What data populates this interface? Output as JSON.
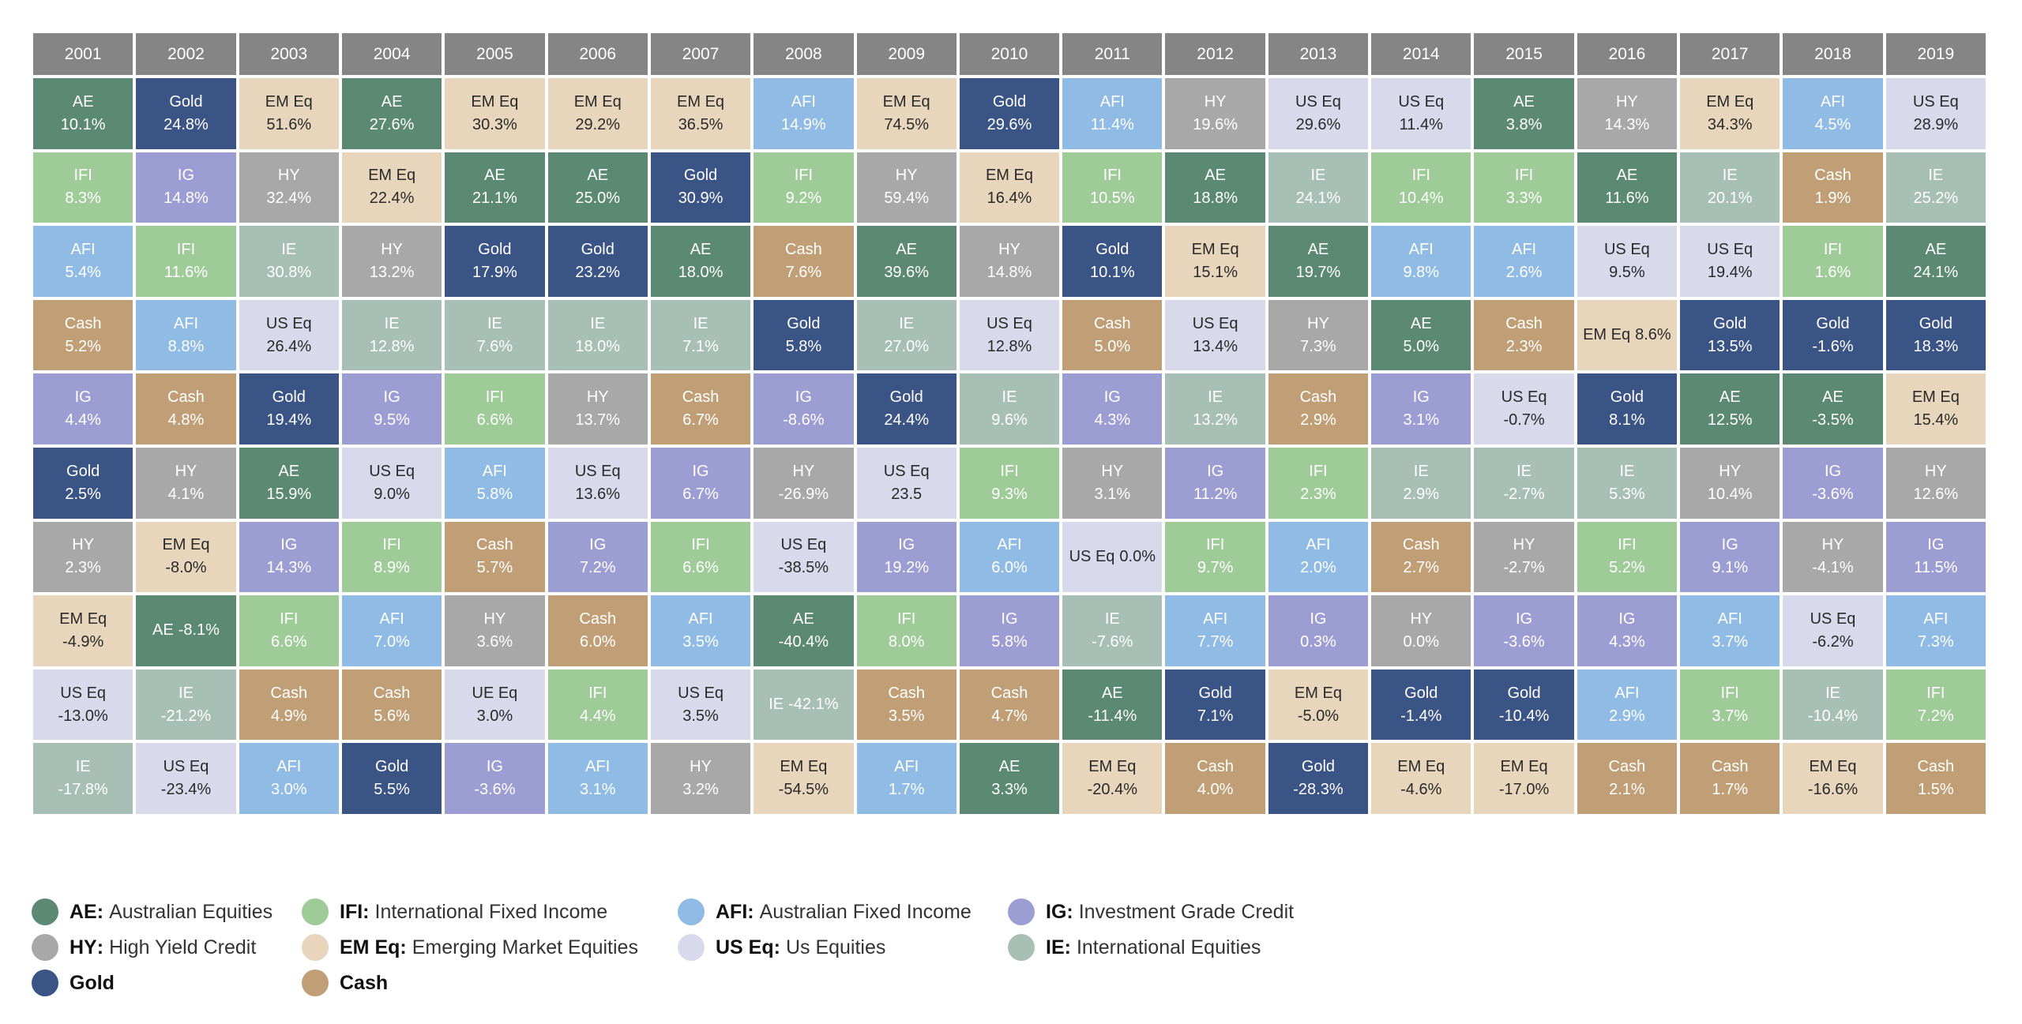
{
  "chart_data": {
    "type": "table",
    "years": [
      "2001",
      "2002",
      "2003",
      "2004",
      "2005",
      "2006",
      "2007",
      "2008",
      "2009",
      "2010",
      "2011",
      "2012",
      "2013",
      "2014",
      "2015",
      "2016",
      "2017",
      "2018",
      "2019"
    ],
    "colors": {
      "AE": "#5c8973",
      "IFI": "#9ecb97",
      "AFI": "#8fbbe5",
      "IG": "#9c9ed3",
      "HY": "#a8a8a8",
      "EM Eq": "#e7d6bc",
      "US Eq": "#d8daec",
      "IE": "#a7bfb5",
      "Gold": "#3b5486",
      "Cash": "#c09f77",
      "UE Eq": "#d8daec"
    },
    "columns": [
      [
        [
          "AE",
          "10.1%"
        ],
        [
          "IFI",
          "8.3%"
        ],
        [
          "AFI",
          "5.4%"
        ],
        [
          "Cash",
          "5.2%"
        ],
        [
          "IG",
          "4.4%"
        ],
        [
          "Gold",
          "2.5%"
        ],
        [
          "HY",
          "2.3%"
        ],
        [
          "EM Eq",
          "-4.9%"
        ],
        [
          "US Eq",
          "-13.0%"
        ],
        [
          "IE",
          "-17.8%"
        ]
      ],
      [
        [
          "Gold",
          "24.8%"
        ],
        [
          "IG",
          "14.8%"
        ],
        [
          "IFI",
          "11.6%"
        ],
        [
          "AFI",
          "8.8%"
        ],
        [
          "Cash",
          "4.8%"
        ],
        [
          "HY",
          "4.1%"
        ],
        [
          "EM Eq",
          "-8.0%"
        ],
        [
          "AE",
          "-8.1%"
        ],
        [
          "IE",
          "-21.2%"
        ],
        [
          "US Eq",
          "-23.4%"
        ]
      ],
      [
        [
          "EM Eq",
          "51.6%"
        ],
        [
          "HY",
          "32.4%"
        ],
        [
          "IE",
          "30.8%"
        ],
        [
          "US Eq",
          "26.4%"
        ],
        [
          "Gold",
          "19.4%"
        ],
        [
          "AE",
          "15.9%"
        ],
        [
          "IG",
          "14.3%"
        ],
        [
          "IFI",
          "6.6%"
        ],
        [
          "Cash",
          "4.9%"
        ],
        [
          "AFI",
          "3.0%"
        ]
      ],
      [
        [
          "AE",
          "27.6%"
        ],
        [
          "EM Eq",
          "22.4%"
        ],
        [
          "HY",
          "13.2%"
        ],
        [
          "IE",
          "12.8%"
        ],
        [
          "IG",
          "9.5%"
        ],
        [
          "US Eq",
          "9.0%"
        ],
        [
          "IFI",
          "8.9%"
        ],
        [
          "AFI",
          "7.0%"
        ],
        [
          "Cash",
          "5.6%"
        ],
        [
          "Gold",
          "5.5%"
        ]
      ],
      [
        [
          "EM Eq",
          "30.3%"
        ],
        [
          "AE",
          "21.1%"
        ],
        [
          "Gold",
          "17.9%"
        ],
        [
          "IE",
          "7.6%"
        ],
        [
          "IFI",
          "6.6%"
        ],
        [
          "AFI",
          "5.8%"
        ],
        [
          "Cash",
          "5.7%"
        ],
        [
          "HY",
          "3.6%"
        ],
        [
          "UE Eq",
          "3.0%"
        ],
        [
          "IG",
          "-3.6%"
        ]
      ],
      [
        [
          "EM Eq",
          "29.2%"
        ],
        [
          "AE",
          "25.0%"
        ],
        [
          "Gold",
          "23.2%"
        ],
        [
          "IE",
          "18.0%"
        ],
        [
          "HY",
          "13.7%"
        ],
        [
          "US Eq",
          "13.6%"
        ],
        [
          "IG",
          "7.2%"
        ],
        [
          "Cash",
          "6.0%"
        ],
        [
          "IFI",
          "4.4%"
        ],
        [
          "AFI",
          "3.1%"
        ]
      ],
      [
        [
          "EM Eq",
          "36.5%"
        ],
        [
          "Gold",
          "30.9%"
        ],
        [
          "AE",
          "18.0%"
        ],
        [
          "IE",
          "7.1%"
        ],
        [
          "Cash",
          "6.7%"
        ],
        [
          "IG",
          "6.7%"
        ],
        [
          "IFI",
          "6.6%"
        ],
        [
          "AFI",
          "3.5%"
        ],
        [
          "US Eq",
          "3.5%"
        ],
        [
          "HY",
          "3.2%"
        ]
      ],
      [
        [
          "AFI",
          "14.9%"
        ],
        [
          "IFI",
          "9.2%"
        ],
        [
          "Cash",
          "7.6%"
        ],
        [
          "Gold",
          "5.8%"
        ],
        [
          "IG",
          "-8.6%"
        ],
        [
          "HY",
          "-26.9%"
        ],
        [
          "US Eq",
          "-38.5%"
        ],
        [
          "AE",
          "-40.4%"
        ],
        [
          "IE",
          "-42.1%"
        ],
        [
          "EM Eq",
          "-54.5%"
        ]
      ],
      [
        [
          "EM Eq",
          "74.5%"
        ],
        [
          "HY",
          "59.4%"
        ],
        [
          "AE",
          "39.6%"
        ],
        [
          "IE",
          "27.0%"
        ],
        [
          "Gold",
          "24.4%"
        ],
        [
          "US Eq",
          "23.5"
        ],
        [
          "IG",
          "19.2%"
        ],
        [
          "IFI",
          "8.0%"
        ],
        [
          "Cash",
          "3.5%"
        ],
        [
          "AFI",
          "1.7%"
        ]
      ],
      [
        [
          "Gold",
          "29.6%"
        ],
        [
          "EM Eq",
          "16.4%"
        ],
        [
          "HY",
          "14.8%"
        ],
        [
          "US Eq",
          "12.8%"
        ],
        [
          "IE",
          "9.6%"
        ],
        [
          "IFI",
          "9.3%"
        ],
        [
          "AFI",
          "6.0%"
        ],
        [
          "IG",
          "5.8%"
        ],
        [
          "Cash",
          "4.7%"
        ],
        [
          "AE",
          "3.3%"
        ]
      ],
      [
        [
          "AFI",
          "11.4%"
        ],
        [
          "IFI",
          "10.5%"
        ],
        [
          "Gold",
          "10.1%"
        ],
        [
          "Cash",
          "5.0%"
        ],
        [
          "IG",
          "4.3%"
        ],
        [
          "HY",
          "3.1%"
        ],
        [
          "US Eq",
          "0.0%"
        ],
        [
          "IE",
          "-7.6%"
        ],
        [
          "AE",
          "-11.4%"
        ],
        [
          "EM Eq",
          "-20.4%"
        ]
      ],
      [
        [
          "HY",
          "19.6%"
        ],
        [
          "AE",
          "18.8%"
        ],
        [
          "EM Eq",
          "15.1%"
        ],
        [
          "US Eq",
          "13.4%"
        ],
        [
          "IE",
          "13.2%"
        ],
        [
          "IG",
          "11.2%"
        ],
        [
          "IFI",
          "9.7%"
        ],
        [
          "AFI",
          "7.7%"
        ],
        [
          "Gold",
          "7.1%"
        ],
        [
          "Cash",
          "4.0%"
        ]
      ],
      [
        [
          "US Eq",
          "29.6%"
        ],
        [
          "IE",
          "24.1%"
        ],
        [
          "AE",
          "19.7%"
        ],
        [
          "HY",
          "7.3%"
        ],
        [
          "Cash",
          "2.9%"
        ],
        [
          "IFI",
          "2.3%"
        ],
        [
          "AFI",
          "2.0%"
        ],
        [
          "IG",
          "0.3%"
        ],
        [
          "EM Eq",
          "-5.0%"
        ],
        [
          "Gold",
          "-28.3%"
        ]
      ],
      [
        [
          "US Eq",
          "11.4%"
        ],
        [
          "IFI",
          "10.4%"
        ],
        [
          "AFI",
          "9.8%"
        ],
        [
          "AE",
          "5.0%"
        ],
        [
          "IG",
          "3.1%"
        ],
        [
          "IE",
          "2.9%"
        ],
        [
          "Cash",
          "2.7%"
        ],
        [
          "HY",
          "0.0%"
        ],
        [
          "Gold",
          "-1.4%"
        ],
        [
          "EM Eq",
          "-4.6%"
        ]
      ],
      [
        [
          "AE",
          "3.8%"
        ],
        [
          "IFI",
          "3.3%"
        ],
        [
          "AFI",
          "2.6%"
        ],
        [
          "Cash",
          "2.3%"
        ],
        [
          "US Eq",
          "-0.7%"
        ],
        [
          "IE",
          "-2.7%"
        ],
        [
          "HY",
          "-2.7%"
        ],
        [
          "IG",
          "-3.6%"
        ],
        [
          "Gold",
          "-10.4%"
        ],
        [
          "EM Eq",
          "-17.0%"
        ]
      ],
      [
        [
          "HY",
          "14.3%"
        ],
        [
          "AE",
          "11.6%"
        ],
        [
          "US Eq",
          "9.5%"
        ],
        [
          "EM Eq",
          "8.6%"
        ],
        [
          "Gold",
          "8.1%"
        ],
        [
          "IE",
          "5.3%"
        ],
        [
          "IFI",
          "5.2%"
        ],
        [
          "IG",
          "4.3%"
        ],
        [
          "AFI",
          "2.9%"
        ],
        [
          "Cash",
          "2.1%"
        ]
      ],
      [
        [
          "EM Eq",
          "34.3%"
        ],
        [
          "IE",
          "20.1%"
        ],
        [
          "US Eq",
          "19.4%"
        ],
        [
          "Gold",
          "13.5%"
        ],
        [
          "AE",
          "12.5%"
        ],
        [
          "HY",
          "10.4%"
        ],
        [
          "IG",
          "9.1%"
        ],
        [
          "AFI",
          "3.7%"
        ],
        [
          "IFI",
          "3.7%"
        ],
        [
          "Cash",
          "1.7%"
        ]
      ],
      [
        [
          "AFI",
          "4.5%"
        ],
        [
          "Cash",
          "1.9%"
        ],
        [
          "IFI",
          "1.6%"
        ],
        [
          "Gold",
          "-1.6%"
        ],
        [
          "AE",
          "-3.5%"
        ],
        [
          "IG",
          "-3.6%"
        ],
        [
          "HY",
          "-4.1%"
        ],
        [
          "US Eq",
          "-6.2%"
        ],
        [
          "IE",
          "-10.4%"
        ],
        [
          "EM Eq",
          "-16.6%"
        ]
      ],
      [
        [
          "US Eq",
          "28.9%"
        ],
        [
          "IE",
          "25.2%"
        ],
        [
          "AE",
          "24.1%"
        ],
        [
          "Gold",
          "18.3%"
        ],
        [
          "EM Eq",
          "15.4%"
        ],
        [
          "HY",
          "12.6%"
        ],
        [
          "IG",
          "11.5%"
        ],
        [
          "AFI",
          "7.3%"
        ],
        [
          "IFI",
          "7.2%"
        ],
        [
          "Cash",
          "1.5%"
        ]
      ]
    ],
    "legend": [
      {
        "abbr": "AE",
        "name": "Australian Equities",
        "color": "#5c8973"
      },
      {
        "abbr": "IFI",
        "name": "International Fixed Income",
        "color": "#9ecb97"
      },
      {
        "abbr": "AFI",
        "name": "Australian Fixed Income",
        "color": "#8fbbe5"
      },
      {
        "abbr": "IG",
        "name": "Investment Grade Credit",
        "color": "#9c9ed3"
      },
      {
        "abbr": "HY",
        "name": "High Yield Credit",
        "color": "#a8a8a8"
      },
      {
        "abbr": "EM Eq",
        "name": "Emerging Market Equities",
        "color": "#e7d6bc"
      },
      {
        "abbr": "US Eq",
        "name": "Us Equities",
        "color": "#d8daec"
      },
      {
        "abbr": "IE",
        "name": "International Equities",
        "color": "#a7bfb5"
      },
      {
        "abbr": "Gold",
        "name": "",
        "color": "#3b5486"
      },
      {
        "abbr": "Cash",
        "name": "",
        "color": "#c09f77"
      }
    ]
  }
}
